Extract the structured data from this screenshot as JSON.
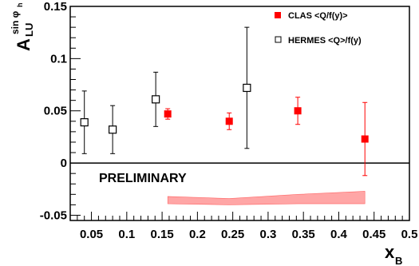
{
  "chart_data": {
    "type": "scatter",
    "xlim": [
      0.02,
      0.5
    ],
    "ylim": [
      -0.055,
      0.15
    ],
    "xticks": [
      "0.05",
      "0.1",
      "0.15",
      "0.2",
      "0.25",
      "0.3",
      "0.35",
      "0.4",
      "0.45",
      "0.5"
    ],
    "yticks": [
      "-0.05",
      "0",
      "0.05",
      "0.1",
      "0.15"
    ],
    "xlabel": {
      "main": "x",
      "sub": "B"
    },
    "ylabel": {
      "main": "A",
      "sub": "LU",
      "sup": "sin φ",
      "supsub": "h"
    },
    "annotation": "PRELIMINARY",
    "zero_line": true,
    "legend_position": "top-right",
    "series": [
      {
        "name": "CLAS <Q/f(y)>",
        "marker": "filled-square",
        "color": "#ff0000",
        "points": [
          {
            "x": 0.158,
            "y": 0.047,
            "yerr": 0.005
          },
          {
            "x": 0.245,
            "y": 0.04,
            "yerr": 0.008
          },
          {
            "x": 0.342,
            "y": 0.05,
            "yerr": 0.013
          },
          {
            "x": 0.437,
            "y": 0.023,
            "yerr": 0.035
          }
        ]
      },
      {
        "name": "HERMES <Q>/f(y)",
        "marker": "open-square",
        "color": "#000000",
        "points": [
          {
            "x": 0.04,
            "y": 0.039,
            "yerr": 0.03
          },
          {
            "x": 0.08,
            "y": 0.032,
            "yerr": 0.023
          },
          {
            "x": 0.141,
            "y": 0.061,
            "yerr": 0.026
          },
          {
            "x": 0.27,
            "y": 0.072,
            "yerr": 0.058
          }
        ]
      }
    ],
    "systematic_band": {
      "color": "#ff0000",
      "x": [
        0.158,
        0.245,
        0.342,
        0.437
      ],
      "upper": [
        -0.032,
        -0.034,
        -0.03,
        -0.027
      ],
      "lower": [
        -0.039,
        -0.04,
        -0.039,
        -0.039
      ]
    }
  }
}
